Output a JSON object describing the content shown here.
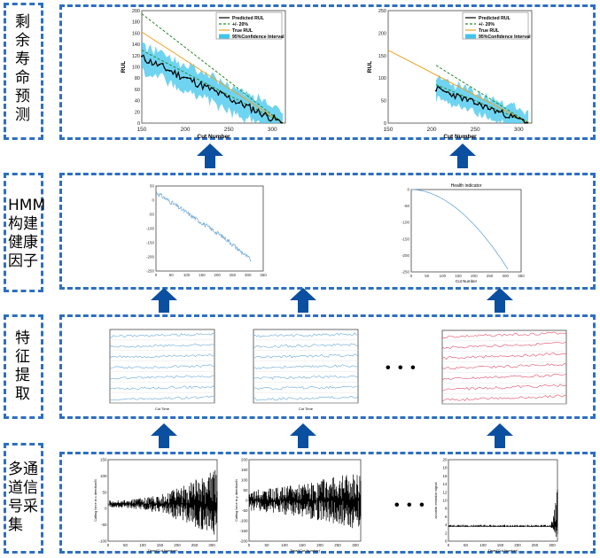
{
  "stages": [
    {
      "id": "rul",
      "label": "剩\n余\n寿\n命\n预\n测"
    },
    {
      "id": "hmm",
      "label": "HMM\n构建\n健康\n因子"
    },
    {
      "id": "feat",
      "label": "特\n征\n提\n取"
    },
    {
      "id": "signal",
      "label": "多通\n道信\n号采\n集"
    }
  ],
  "rul_charts": {
    "xlabel": "Cut Number",
    "ylabel": "RUL",
    "legend": [
      "Predicted RUL",
      "+/- 20%",
      "True RUL",
      "95%Confidence Interval"
    ],
    "left": {
      "xticks": [
        "150",
        "200",
        "250",
        "300"
      ],
      "yticks": [
        "0",
        "20",
        "40",
        "60",
        "80",
        "100",
        "120",
        "140",
        "160",
        "180",
        "200"
      ]
    },
    "right": {
      "xticks": [
        "150",
        "200",
        "250",
        "300"
      ],
      "yticks": [
        "0",
        "50",
        "100",
        "150",
        "200",
        "250"
      ]
    }
  },
  "hmm_charts": {
    "left": {
      "yticks": [
        "50",
        "0",
        "-50",
        "-100",
        "-150",
        "-200",
        "-250"
      ],
      "xticks": [
        "0",
        "50",
        "100",
        "150",
        "200",
        "250",
        "300",
        "350"
      ]
    },
    "right": {
      "title": "Health indicator",
      "yticks": [
        "0",
        "-50",
        "-100",
        "-150",
        "-200",
        "-250"
      ],
      "xticks": [
        "0",
        "50",
        "100",
        "150",
        "200",
        "250",
        "300",
        "350"
      ],
      "xlabel": "Cut Number"
    }
  },
  "feature_charts": {
    "ellipsis": "• • •",
    "left_xlabel": "Cut Time",
    "mid_xlabel": "Cut Time"
  },
  "signal_charts": {
    "ellipsis": "• • •",
    "left": {
      "ylabel": "Cutting force in x direction/N",
      "xlabel": "Time/(Cut Number)",
      "yticks": [
        "150",
        "100",
        "50",
        "0",
        "-50",
        "-100"
      ],
      "xticks": [
        "0",
        "50",
        "100",
        "150",
        "200",
        "250",
        "300"
      ]
    },
    "mid": {
      "ylabel": "Cutting force in y direction/N",
      "xlabel": "Time/(Cut Number)",
      "yticks": [
        "200",
        "150",
        "100",
        "50",
        "0",
        "-50",
        "-100",
        "-150",
        "-200"
      ],
      "xticks": [
        "0",
        "50",
        "100",
        "150",
        "200",
        "250",
        "300"
      ]
    },
    "right": {
      "ylabel": "acoustic emission signal",
      "xlabel": "Time/(Cut Number)",
      "yticks": [
        "20",
        "18",
        "16",
        "14",
        "12",
        "10",
        "8",
        "6",
        "4",
        "2",
        "0"
      ],
      "xticks": [
        "0",
        "50",
        "100",
        "150",
        "200",
        "250",
        "300"
      ]
    }
  },
  "colors": {
    "border": "#2e6fc0",
    "arrow": "#0b4fa0",
    "predicted": "#000000",
    "band": "#3fc6ec",
    "true": "#f0a020",
    "bound": "#2a8a2a",
    "hi": "#6aa8d8"
  }
}
